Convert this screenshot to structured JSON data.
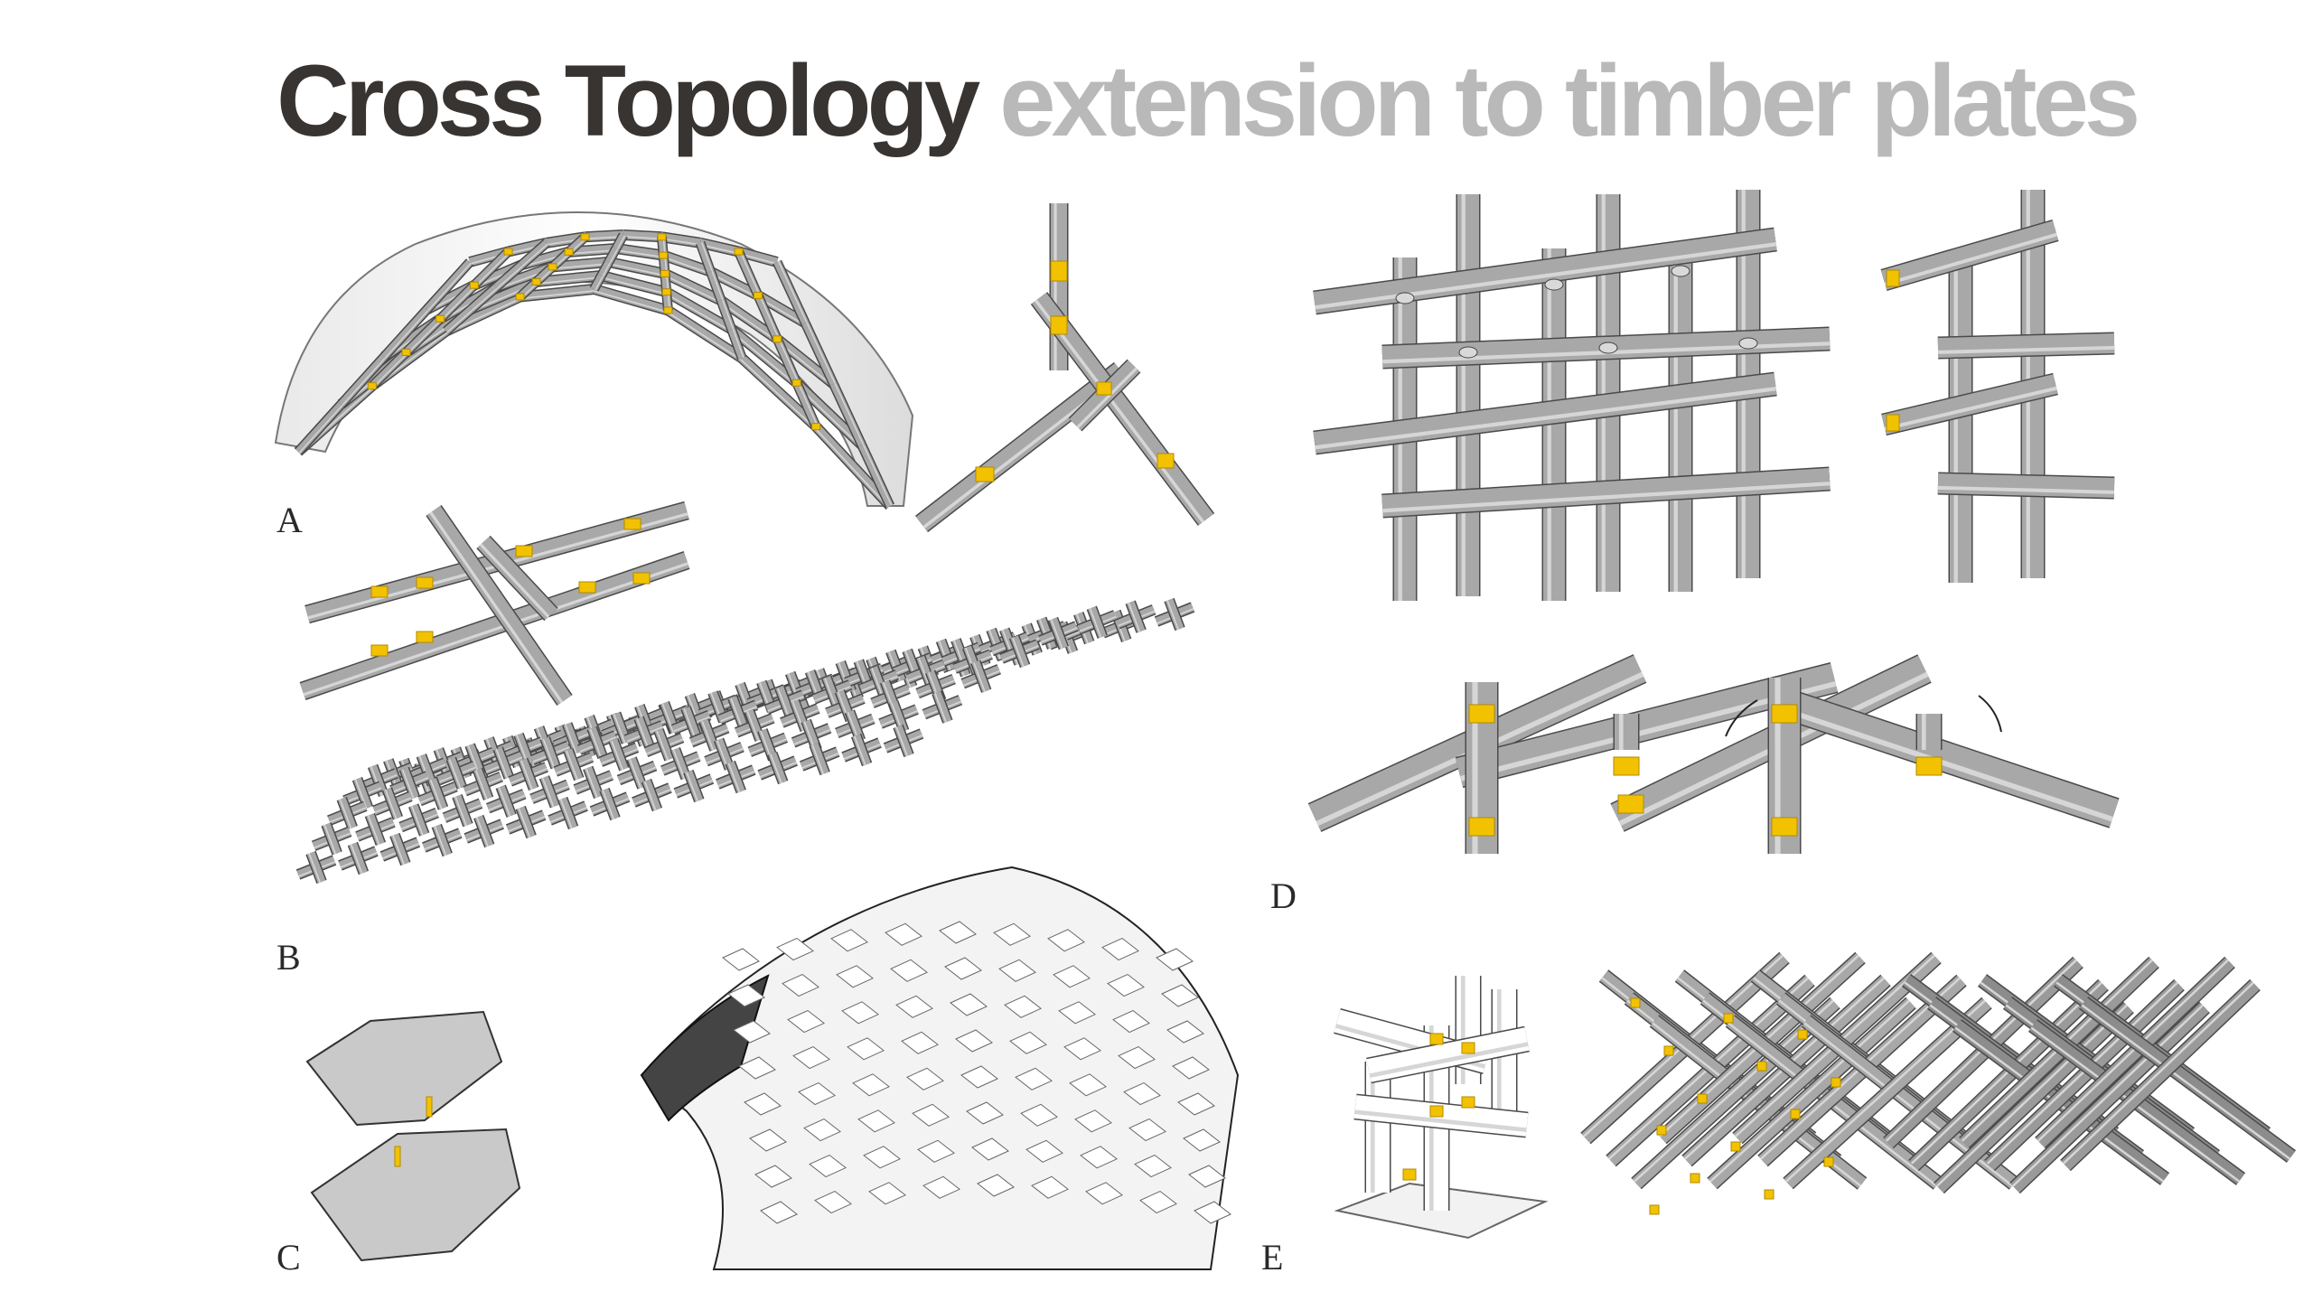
{
  "title": {
    "primary": "Cross Topology",
    "secondary": "extension to timber plates"
  },
  "panels": [
    {
      "label": "A"
    },
    {
      "label": "B"
    },
    {
      "label": "C"
    },
    {
      "label": "D"
    },
    {
      "label": "E"
    }
  ],
  "colors": {
    "title_primary": "#383432",
    "title_secondary": "#b9b9b9",
    "timber": "#a8a8a8",
    "timber_edge": "#4a4a4a",
    "joint": "#f2c200"
  }
}
